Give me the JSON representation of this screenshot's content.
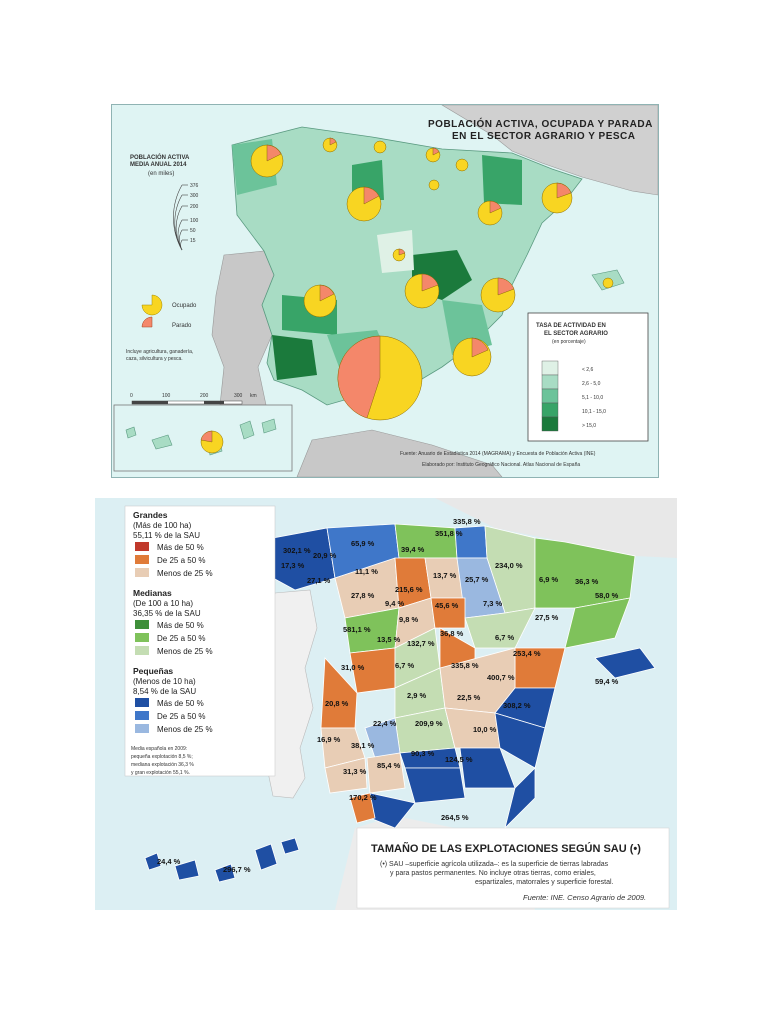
{
  "map1": {
    "title_line1": "POBLACIÓN ACTIVA, OCUPADA Y PARADA",
    "title_line2": "EN EL SECTOR AGRARIO Y PESCA",
    "pop_legend_title1": "POBLACIÓN ACTIVA",
    "pop_legend_title2": "MEDIA ANUAL 2014",
    "pop_legend_unit": "(en miles)",
    "pop_values": [
      "376",
      "300",
      "200",
      "100",
      "50",
      "15"
    ],
    "ocupado_label": "Ocupado",
    "parado_label": "Parado",
    "note_line1": "Incluye agricultura, ganadería,",
    "note_line2": "caza, silvicultura y pesca.",
    "scale_ticks": [
      "0",
      "100",
      "200",
      "300"
    ],
    "scale_unit": "km",
    "rate_legend_title1": "TASA DE ACTIVIDAD EN",
    "rate_legend_title2": "EL SECTOR AGRARIO",
    "rate_legend_unit": "(en porcentaje)",
    "rate_classes": [
      "< 2,6",
      "2,6 - 5,0",
      "5,1 - 10,0",
      "10,1 - 15,0",
      "> 15,0"
    ],
    "rate_colors": [
      "#dff1e6",
      "#a8dcc4",
      "#6cc39a",
      "#38a468",
      "#1b7a3c"
    ],
    "ocupado_color": "#f8d522",
    "parado_color": "#f4876a",
    "source": "Fuente: Anuario de Estadística 2014 (MAGRAMA) y Encuesta de Población Activa (INE)",
    "credit": "Elaborado por: Instituto Geográfico Nacional. Atlas Nacional de España"
  },
  "map2": {
    "legend_grandes_title": "Grandes",
    "legend_grandes_sub1": "(Más de 100 ha)",
    "legend_grandes_sub2": "55,11 % de la SAU",
    "legend_medianas_title": "Medianas",
    "legend_medianas_sub1": "(De 100 a 10 ha)",
    "legend_medianas_sub2": "36,35 % de la SAU",
    "legend_pequenas_title": "Pequeñas",
    "legend_pequenas_sub1": "(Menos de 10 ha)",
    "legend_pequenas_sub2": "8,54 % de la SAU",
    "legend_items_grandes": [
      "Más de 50 %",
      "De 25 a 50 %",
      "Menos de 25 %"
    ],
    "legend_items_medianas": [
      "Más de 50 %",
      "De 25 a 50 %",
      "Menos de 25 %"
    ],
    "legend_items_pequenas": [
      "Más de 50 %",
      "De 25 a 50 %",
      "Menos de 25 %"
    ],
    "colors_grandes": [
      "#c0392b",
      "#e07b39",
      "#e8cdb5"
    ],
    "colors_medianas": [
      "#3e8f3a",
      "#7fc25b",
      "#c4ddb3"
    ],
    "colors_pequenas": [
      "#1f4fa3",
      "#3f77c9",
      "#9ab8e0"
    ],
    "media_line1": "Media española en 2009:",
    "media_line2": "pequeña explotación 8,5 %;",
    "media_line3": "mediana explotación 36,3 %",
    "media_line4": "y gran explotación 55,1 %.",
    "title": "TAMAÑO DE LAS EXPLOTACIONES SEGÚN SAU (•)",
    "note_line1": "(•) SAU –superficie agrícola utilizada–: es la superficie de tierras labradas",
    "note_line2": "y para pastos permanentes. No incluye otras tierras, como eriales,",
    "note_line3": "espartizales, matorrales y superficie forestal.",
    "source": "Fuente: INE. Censo Agrario de 2009.",
    "province_values": [
      "302,1 %",
      "20,9 %",
      "65,9 %",
      "39,4 %",
      "351,8 %",
      "335,8 %",
      "17,3 %",
      "27,1 %",
      "11,1 %",
      "215,6 %",
      "13,7 %",
      "25,7 %",
      "234,0 %",
      "6,9 %",
      "36,3 %",
      "58,0 %",
      "27,8 %",
      "9,4 %",
      "45,6 %",
      "7,3 %",
      "27,5 %",
      "9,8 %",
      "581,1 %",
      "13,5 %",
      "132,7 %",
      "36,8 %",
      "6,7 %",
      "253,4 %",
      "31,0 %",
      "6,7 %",
      "335,8 %",
      "400,7 %",
      "59,4 %",
      "2,9 %",
      "22,5 %",
      "20,8 %",
      "308,2 %",
      "22,4 %",
      "209,9 %",
      "10,0 %",
      "16,9 %",
      "38,1 %",
      "90,3 %",
      "124,5 %",
      "85,4 %",
      "31,3 %",
      "170,2 %",
      "264,5 %",
      "24,4 %",
      "296,7 %"
    ]
  }
}
